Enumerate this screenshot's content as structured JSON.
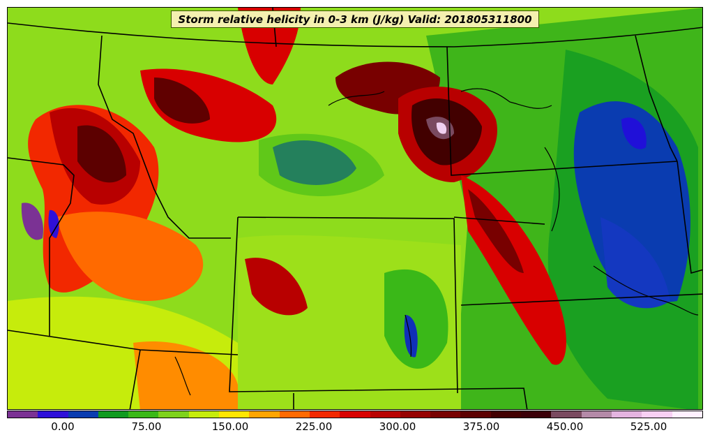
{
  "map": {
    "title": "Storm relative helicity in 0-3 km (J/kg) Valid: 201805311800"
  },
  "colorbar": {
    "colors": [
      "#7b3294",
      "#2f10d8",
      "#0a3cb0",
      "#109a20",
      "#3ab818",
      "#7ed21c",
      "#c6ec0c",
      "#ffe600",
      "#ffa500",
      "#ff6a00",
      "#f22800",
      "#d80000",
      "#b80000",
      "#960000",
      "#780000",
      "#5c0000",
      "#420000",
      "#3a0008",
      "#7a4a60",
      "#b48aa8",
      "#e4b4e0",
      "#f8d0f4",
      "#fff0ff"
    ],
    "ticks": [
      "0.00",
      "75.00",
      "150.00",
      "225.00",
      "300.00",
      "375.00",
      "450.00",
      "525.00"
    ]
  }
}
